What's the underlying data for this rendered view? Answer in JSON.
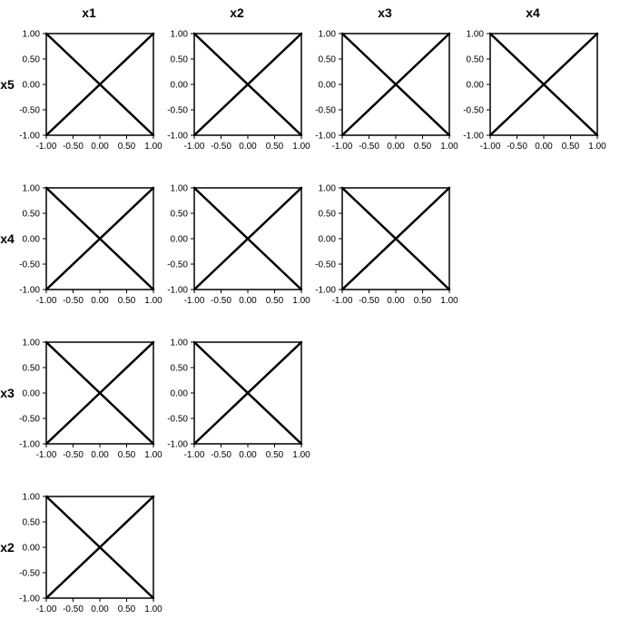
{
  "chart_data": {
    "type": "scatter",
    "kind": "scatter-matrix",
    "columns": [
      "x1",
      "x2",
      "x3",
      "x4"
    ],
    "rows": [
      "x5",
      "x4",
      "x3",
      "x2"
    ],
    "xlim": [
      -1,
      1
    ],
    "ylim": [
      -1,
      1
    ],
    "ticks": [
      "-1.00",
      "-0.50",
      "0.00",
      "0.50",
      "1.00"
    ],
    "tick_values": [
      -1,
      -0.5,
      0,
      0.5,
      1
    ],
    "grid": false,
    "line_color": "#000000",
    "panels": [
      {
        "row": "x5",
        "col": "x1",
        "series": [
          {
            "x": [
              -1,
              1
            ],
            "y": [
              -1,
              1
            ]
          },
          {
            "x": [
              -1,
              1
            ],
            "y": [
              1,
              -1
            ]
          }
        ]
      },
      {
        "row": "x5",
        "col": "x2",
        "series": [
          {
            "x": [
              -1,
              1
            ],
            "y": [
              -1,
              1
            ]
          },
          {
            "x": [
              -1,
              1
            ],
            "y": [
              1,
              -1
            ]
          }
        ]
      },
      {
        "row": "x5",
        "col": "x3",
        "series": [
          {
            "x": [
              -1,
              1
            ],
            "y": [
              -1,
              1
            ]
          },
          {
            "x": [
              -1,
              1
            ],
            "y": [
              1,
              -1
            ]
          }
        ]
      },
      {
        "row": "x5",
        "col": "x4",
        "series": [
          {
            "x": [
              -1,
              1
            ],
            "y": [
              -1,
              1
            ]
          },
          {
            "x": [
              -1,
              1
            ],
            "y": [
              1,
              -1
            ]
          }
        ]
      },
      {
        "row": "x4",
        "col": "x1",
        "series": [
          {
            "x": [
              -1,
              1
            ],
            "y": [
              -1,
              1
            ]
          },
          {
            "x": [
              -1,
              1
            ],
            "y": [
              1,
              -1
            ]
          }
        ]
      },
      {
        "row": "x4",
        "col": "x2",
        "series": [
          {
            "x": [
              -1,
              1
            ],
            "y": [
              -1,
              1
            ]
          },
          {
            "x": [
              -1,
              1
            ],
            "y": [
              1,
              -1
            ]
          }
        ]
      },
      {
        "row": "x4",
        "col": "x3",
        "series": [
          {
            "x": [
              -1,
              1
            ],
            "y": [
              -1,
              1
            ]
          },
          {
            "x": [
              -1,
              1
            ],
            "y": [
              1,
              -1
            ]
          }
        ]
      },
      {
        "row": "x3",
        "col": "x1",
        "series": [
          {
            "x": [
              -1,
              1
            ],
            "y": [
              -1,
              1
            ]
          },
          {
            "x": [
              -1,
              1
            ],
            "y": [
              1,
              -1
            ]
          }
        ]
      },
      {
        "row": "x3",
        "col": "x2",
        "series": [
          {
            "x": [
              -1,
              1
            ],
            "y": [
              -1,
              1
            ]
          },
          {
            "x": [
              -1,
              1
            ],
            "y": [
              1,
              -1
            ]
          }
        ]
      },
      {
        "row": "x2",
        "col": "x1",
        "series": [
          {
            "x": [
              -1,
              1
            ],
            "y": [
              -1,
              1
            ]
          },
          {
            "x": [
              -1,
              1
            ],
            "y": [
              1,
              -1
            ]
          }
        ]
      }
    ]
  }
}
